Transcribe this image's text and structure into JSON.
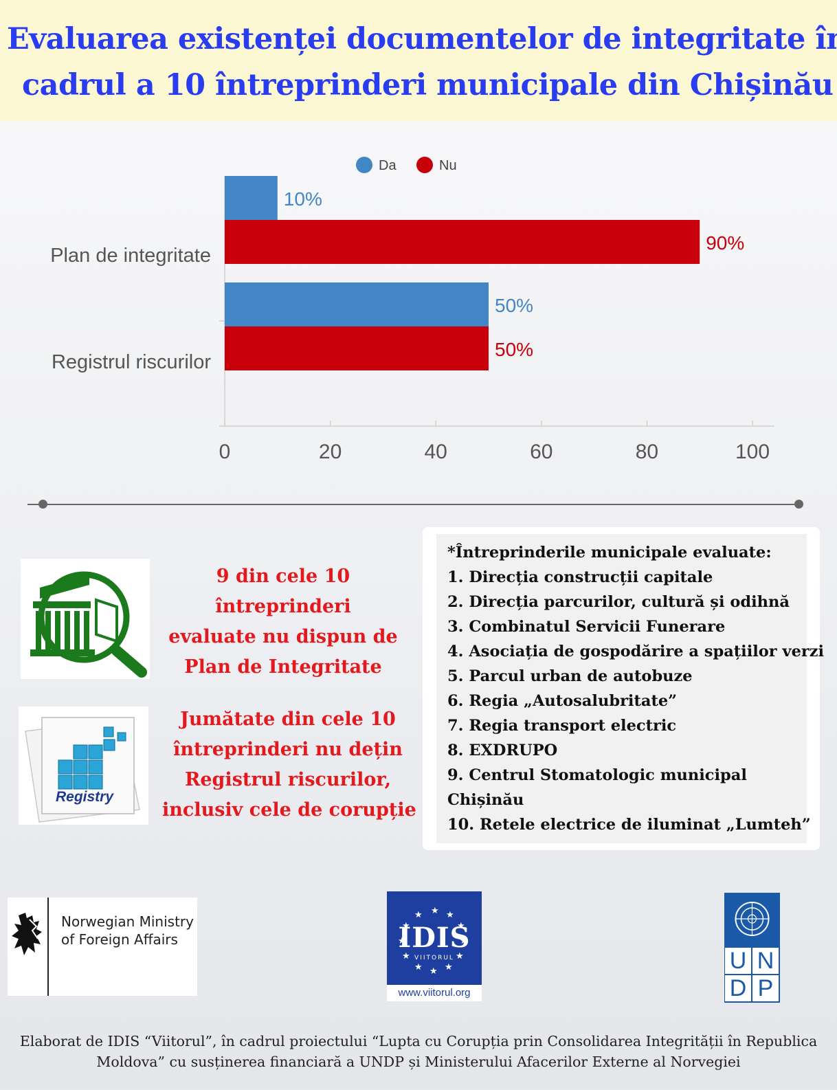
{
  "header": {
    "title_line1": "Evaluarea existenței documentelor de integritate în",
    "title_line2": "cadrul a 10 întreprinderi municipale din Chișinău"
  },
  "chart_data": {
    "type": "bar",
    "orientation": "horizontal",
    "categories": [
      "Plan de integritate",
      "Registrul riscurilor"
    ],
    "series": [
      {
        "name": "Da",
        "color": "#4286c6",
        "values": [
          10,
          50
        ],
        "labels": [
          "10%",
          "50%"
        ]
      },
      {
        "name": "Nu",
        "color": "#c8000b",
        "values": [
          90,
          50
        ],
        "labels": [
          "90%",
          "50%"
        ]
      }
    ],
    "xlim": [
      0,
      100
    ],
    "x_ticks": [
      0,
      20,
      40,
      60,
      80,
      100
    ],
    "grid": false,
    "legend_position": "top"
  },
  "findings": [
    {
      "lines": [
        "9 din cele 10",
        "întreprinderi",
        "evaluate nu dispun de",
        "Plan de Integritate"
      ],
      "icon": "building-magnifier-icon"
    },
    {
      "lines": [
        "Jumătate din cele 10",
        "întreprinderi nu dețin",
        "Registrul riscurilor,",
        "inclusiv cele de corupție"
      ],
      "icon": "registry-cubes-icon",
      "icon_label": "Registry"
    }
  ],
  "enterprise_list": {
    "heading": "*Întreprinderile municipale evaluate:",
    "items": [
      "1. Direcția construcții capitale",
      "2. Direcția parcurilor, cultură și odihnă",
      "3. Combinatul Servicii Funerare",
      "4. Asociația de gospodărire a spațiilor verzi",
      "5. Parcul urban de autobuze",
      "6. Regia „Autosalubritate”",
      "7. Regia transport electric",
      "8. EXDRUPO",
      "9. Centrul Stomatologic municipal",
      "Chișinău",
      "10. Retele electrice de iluminat „Lumteh”"
    ]
  },
  "logos": {
    "norway": {
      "line1": "Norwegian Ministry",
      "line2": "of Foreign Affairs",
      "icon": "norway-lion-icon"
    },
    "idis": {
      "mark": "IDIS",
      "sub": "VIITORUL",
      "url": "www.viitorul.org",
      "color": "#1f3fa0"
    },
    "undp": {
      "row1": [
        "U",
        "N"
      ],
      "row2": [
        "D",
        "P"
      ],
      "color": "#1a5aa8",
      "icon": "un-emblem-icon"
    }
  },
  "footer": {
    "line1": "Elaborat de IDIS “Viitorul”, în cadrul proiectului “Lupta cu Corupția prin Consolidarea Integrității în Republica",
    "line2": "Moldova” cu susținerea financiară a UNDP și Ministerului  Afacerilor  Externe  al  Norvegiei"
  }
}
